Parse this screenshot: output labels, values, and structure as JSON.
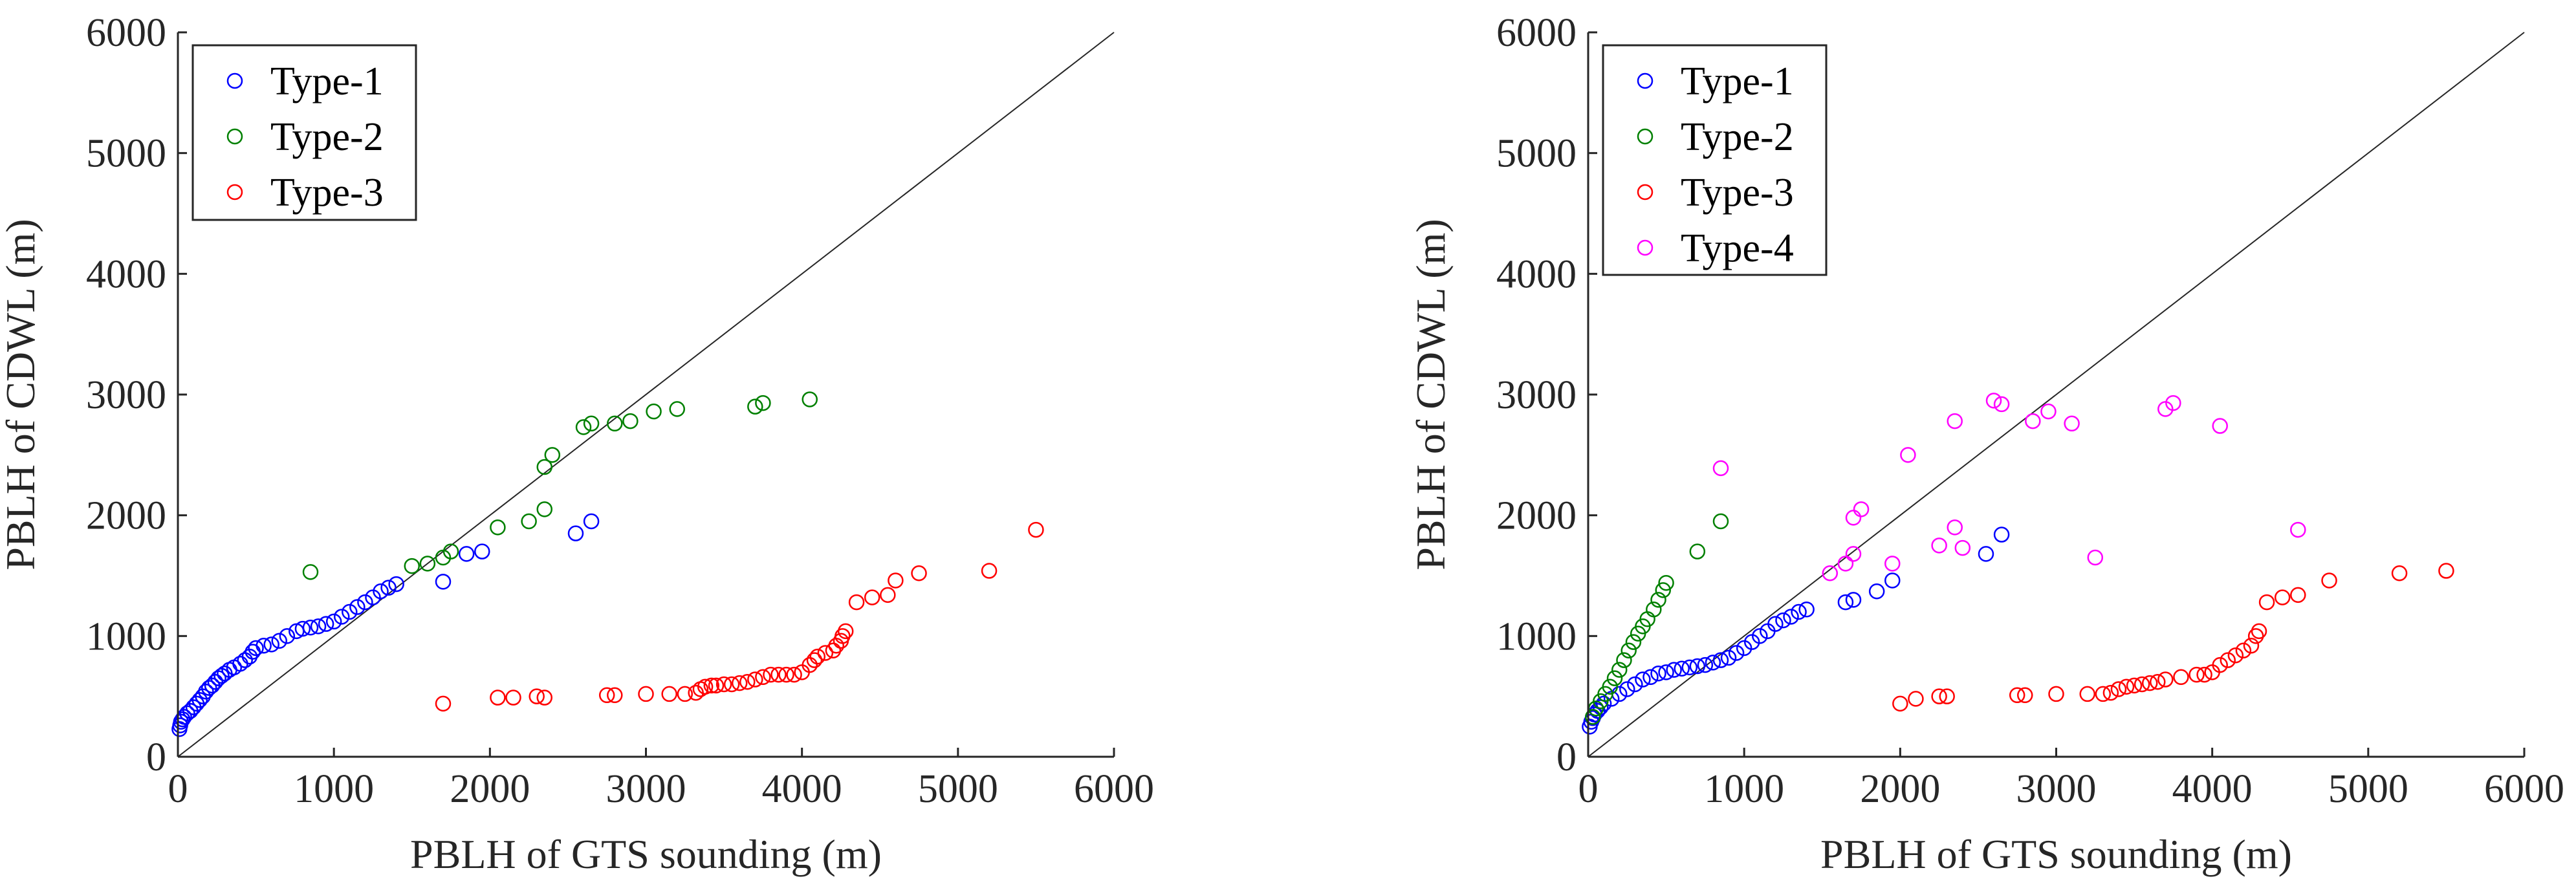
{
  "colors": {
    "type1": "#0000ff",
    "type2": "#008000",
    "type3": "#ff0000",
    "type4": "#ff00ff",
    "axis": "#262626"
  },
  "chart_data": [
    {
      "type": "scatter",
      "xlabel": "PBLH of GTS sounding (m)",
      "ylabel": "PBLH of CDWL (m)",
      "xlim": [
        0,
        6000
      ],
      "ylim": [
        0,
        6000
      ],
      "xticks": [
        "0",
        "1000",
        "2000",
        "3000",
        "4000",
        "5000",
        "6000"
      ],
      "yticks": [
        "0",
        "1000",
        "2000",
        "3000",
        "4000",
        "5000",
        "6000"
      ],
      "reference_line": "1:1",
      "legend_position": "top-left",
      "series": [
        {
          "name": "Type-1",
          "color": "#0000ff",
          "points": [
            [
              10,
              230
            ],
            [
              15,
              260
            ],
            [
              20,
              290
            ],
            [
              30,
              310
            ],
            [
              40,
              330
            ],
            [
              60,
              360
            ],
            [
              80,
              380
            ],
            [
              100,
              410
            ],
            [
              120,
              440
            ],
            [
              140,
              470
            ],
            [
              160,
              500
            ],
            [
              180,
              540
            ],
            [
              200,
              570
            ],
            [
              220,
              590
            ],
            [
              240,
              620
            ],
            [
              260,
              650
            ],
            [
              280,
              670
            ],
            [
              300,
              690
            ],
            [
              330,
              720
            ],
            [
              360,
              740
            ],
            [
              400,
              770
            ],
            [
              430,
              800
            ],
            [
              460,
              830
            ],
            [
              480,
              870
            ],
            [
              500,
              900
            ],
            [
              550,
              920
            ],
            [
              600,
              930
            ],
            [
              650,
              960
            ],
            [
              700,
              1000
            ],
            [
              760,
              1040
            ],
            [
              800,
              1060
            ],
            [
              850,
              1070
            ],
            [
              900,
              1080
            ],
            [
              950,
              1100
            ],
            [
              1000,
              1120
            ],
            [
              1050,
              1160
            ],
            [
              1100,
              1200
            ],
            [
              1150,
              1240
            ],
            [
              1200,
              1280
            ],
            [
              1250,
              1320
            ],
            [
              1300,
              1370
            ],
            [
              1350,
              1400
            ],
            [
              1400,
              1430
            ],
            [
              1700,
              1450
            ],
            [
              1850,
              1680
            ],
            [
              1950,
              1700
            ],
            [
              2550,
              1850
            ],
            [
              2650,
              1950
            ]
          ]
        },
        {
          "name": "Type-2",
          "color": "#008000",
          "points": [
            [
              850,
              1530
            ],
            [
              1500,
              1580
            ],
            [
              1600,
              1600
            ],
            [
              1700,
              1650
            ],
            [
              1750,
              1700
            ],
            [
              2050,
              1900
            ],
            [
              2250,
              1950
            ],
            [
              2350,
              2050
            ],
            [
              2350,
              2400
            ],
            [
              2400,
              2500
            ],
            [
              2600,
              2730
            ],
            [
              2650,
              2760
            ],
            [
              2800,
              2760
            ],
            [
              2900,
              2780
            ],
            [
              3050,
              2860
            ],
            [
              3200,
              2880
            ],
            [
              3700,
              2900
            ],
            [
              3750,
              2930
            ],
            [
              4050,
              2960
            ]
          ]
        },
        {
          "name": "Type-3",
          "color": "#ff0000",
          "points": [
            [
              1700,
              440
            ],
            [
              2050,
              490
            ],
            [
              2150,
              490
            ],
            [
              2300,
              500
            ],
            [
              2350,
              490
            ],
            [
              2750,
              510
            ],
            [
              2800,
              510
            ],
            [
              3000,
              520
            ],
            [
              3150,
              520
            ],
            [
              3250,
              520
            ],
            [
              3320,
              530
            ],
            [
              3350,
              560
            ],
            [
              3380,
              580
            ],
            [
              3420,
              590
            ],
            [
              3450,
              590
            ],
            [
              3500,
              600
            ],
            [
              3550,
              600
            ],
            [
              3600,
              610
            ],
            [
              3650,
              620
            ],
            [
              3700,
              640
            ],
            [
              3750,
              660
            ],
            [
              3800,
              680
            ],
            [
              3850,
              680
            ],
            [
              3900,
              680
            ],
            [
              3950,
              680
            ],
            [
              4000,
              700
            ],
            [
              4050,
              760
            ],
            [
              4080,
              800
            ],
            [
              4100,
              830
            ],
            [
              4150,
              860
            ],
            [
              4200,
              880
            ],
            [
              4220,
              920
            ],
            [
              4250,
              960
            ],
            [
              4260,
              1000
            ],
            [
              4280,
              1040
            ],
            [
              4350,
              1280
            ],
            [
              4450,
              1320
            ],
            [
              4550,
              1340
            ],
            [
              4600,
              1460
            ],
            [
              4750,
              1520
            ],
            [
              5200,
              1540
            ],
            [
              5500,
              1880
            ]
          ]
        }
      ]
    },
    {
      "type": "scatter",
      "xlabel": "PBLH of GTS sounding (m)",
      "ylabel": "PBLH of CDWL (m)",
      "xlim": [
        0,
        6000
      ],
      "ylim": [
        0,
        6000
      ],
      "xticks": [
        "0",
        "1000",
        "2000",
        "3000",
        "4000",
        "5000",
        "6000"
      ],
      "yticks": [
        "0",
        "1000",
        "2000",
        "3000",
        "4000",
        "5000",
        "6000"
      ],
      "reference_line": "1:1",
      "legend_position": "top-left",
      "series": [
        {
          "name": "Type-1",
          "color": "#0000ff",
          "points": [
            [
              10,
              250
            ],
            [
              20,
              290
            ],
            [
              30,
              320
            ],
            [
              40,
              350
            ],
            [
              60,
              380
            ],
            [
              80,
              410
            ],
            [
              100,
              440
            ],
            [
              150,
              480
            ],
            [
              200,
              520
            ],
            [
              250,
              560
            ],
            [
              300,
              600
            ],
            [
              350,
              640
            ],
            [
              400,
              660
            ],
            [
              450,
              690
            ],
            [
              500,
              700
            ],
            [
              550,
              720
            ],
            [
              600,
              730
            ],
            [
              650,
              740
            ],
            [
              700,
              750
            ],
            [
              750,
              760
            ],
            [
              800,
              780
            ],
            [
              850,
              800
            ],
            [
              900,
              820
            ],
            [
              950,
              860
            ],
            [
              1000,
              900
            ],
            [
              1050,
              950
            ],
            [
              1100,
              1000
            ],
            [
              1150,
              1040
            ],
            [
              1200,
              1100
            ],
            [
              1250,
              1130
            ],
            [
              1300,
              1160
            ],
            [
              1350,
              1200
            ],
            [
              1400,
              1220
            ],
            [
              1650,
              1280
            ],
            [
              1700,
              1300
            ],
            [
              1850,
              1370
            ],
            [
              1950,
              1460
            ],
            [
              2550,
              1680
            ],
            [
              2650,
              1840
            ]
          ]
        },
        {
          "name": "Type-2",
          "color": "#008000",
          "points": [
            [
              30,
              330
            ],
            [
              50,
              400
            ],
            [
              80,
              460
            ],
            [
              110,
              520
            ],
            [
              140,
              580
            ],
            [
              170,
              650
            ],
            [
              200,
              720
            ],
            [
              230,
              800
            ],
            [
              260,
              880
            ],
            [
              290,
              950
            ],
            [
              320,
              1020
            ],
            [
              350,
              1080
            ],
            [
              380,
              1140
            ],
            [
              420,
              1220
            ],
            [
              450,
              1300
            ],
            [
              480,
              1380
            ],
            [
              500,
              1440
            ],
            [
              700,
              1700
            ],
            [
              850,
              1950
            ]
          ]
        },
        {
          "name": "Type-3",
          "color": "#ff0000",
          "points": [
            [
              2000,
              440
            ],
            [
              2100,
              480
            ],
            [
              2250,
              500
            ],
            [
              2300,
              500
            ],
            [
              2750,
              510
            ],
            [
              2800,
              510
            ],
            [
              3000,
              520
            ],
            [
              3200,
              520
            ],
            [
              3300,
              520
            ],
            [
              3350,
              530
            ],
            [
              3400,
              560
            ],
            [
              3450,
              580
            ],
            [
              3500,
              590
            ],
            [
              3550,
              600
            ],
            [
              3600,
              610
            ],
            [
              3650,
              620
            ],
            [
              3700,
              640
            ],
            [
              3800,
              660
            ],
            [
              3900,
              680
            ],
            [
              3950,
              680
            ],
            [
              4000,
              700
            ],
            [
              4050,
              760
            ],
            [
              4100,
              800
            ],
            [
              4150,
              840
            ],
            [
              4200,
              880
            ],
            [
              4250,
              920
            ],
            [
              4280,
              1000
            ],
            [
              4300,
              1040
            ],
            [
              4350,
              1280
            ],
            [
              4450,
              1320
            ],
            [
              4550,
              1340
            ],
            [
              4750,
              1460
            ],
            [
              5200,
              1520
            ],
            [
              5500,
              1540
            ]
          ]
        },
        {
          "name": "Type-4",
          "color": "#ff00ff",
          "points": [
            [
              850,
              2390
            ],
            [
              1550,
              1520
            ],
            [
              1650,
              1600
            ],
            [
              1700,
              1680
            ],
            [
              1700,
              1980
            ],
            [
              1750,
              2050
            ],
            [
              1950,
              1600
            ],
            [
              2050,
              2500
            ],
            [
              2250,
              1750
            ],
            [
              2350,
              1900
            ],
            [
              2350,
              2780
            ],
            [
              2400,
              1730
            ],
            [
              2600,
              2950
            ],
            [
              2650,
              2920
            ],
            [
              2850,
              2780
            ],
            [
              2950,
              2860
            ],
            [
              3100,
              2760
            ],
            [
              3250,
              1650
            ],
            [
              3700,
              2880
            ],
            [
              3750,
              2930
            ],
            [
              4050,
              2740
            ],
            [
              4550,
              1880
            ]
          ]
        }
      ]
    }
  ]
}
